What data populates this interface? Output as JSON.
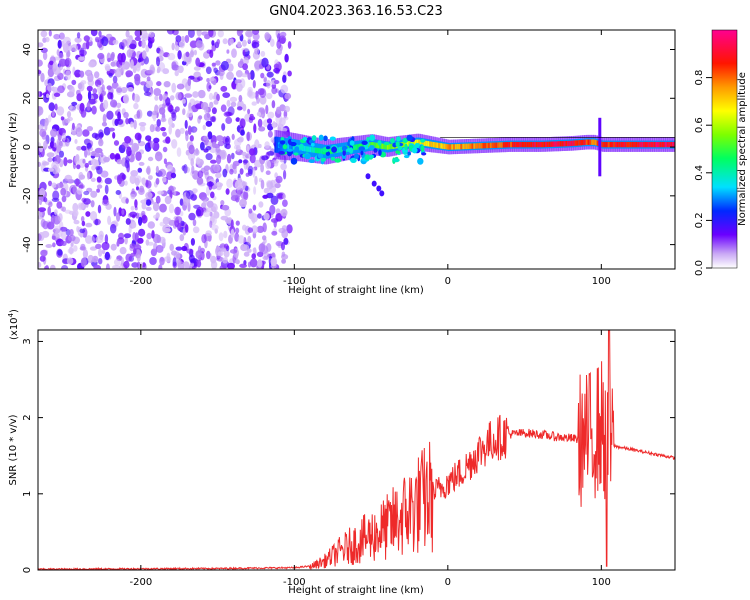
{
  "figure": {
    "title": "GN04.2023.363.16.53.C23"
  },
  "chart_data": [
    {
      "type": "heatmap",
      "name": "spectrogram",
      "xlabel": "Height of straight line (km)",
      "ylabel": "Frequency (Hz)",
      "xlim": [
        -267,
        148
      ],
      "ylim": [
        -50,
        48
      ],
      "xticks": [
        -200,
        -100,
        0,
        100
      ],
      "xtick_labels": [
        "-200",
        "-100",
        "0",
        "100"
      ],
      "yticks": [
        -40,
        -20,
        0,
        20,
        40
      ],
      "ytick_labels": [
        "-40",
        "-20",
        "0",
        "20",
        "40"
      ],
      "noise_region": {
        "x_range": [
          -267,
          -103
        ],
        "y_range": [
          -50,
          48
        ]
      },
      "signal_band": {
        "x": [
          -113,
          -100,
          -90,
          -80,
          -70,
          -60,
          -50,
          -40,
          -30,
          -20,
          -10,
          0,
          20,
          40,
          60,
          80,
          90,
          95,
          100,
          148
        ],
        "center_hz": [
          1,
          0,
          -1,
          -2,
          -1,
          0,
          1,
          0,
          1,
          2,
          1,
          0,
          0.5,
          1,
          1,
          1.5,
          2,
          2,
          1,
          1
        ],
        "amplitude": [
          0.25,
          0.35,
          0.4,
          0.45,
          0.4,
          0.45,
          0.5,
          0.55,
          0.6,
          0.65,
          0.7,
          0.75,
          0.8,
          0.85,
          0.9,
          0.9,
          0.85,
          0.8,
          0.85,
          0.95
        ]
      },
      "colorbar": {
        "label": "Normalized spectral amplitude",
        "ticks": [
          0.0,
          0.2,
          0.4,
          0.6,
          0.8
        ],
        "tick_labels": [
          "0.0",
          "0.2",
          "0.4",
          "0.6",
          "0.8"
        ],
        "range": [
          0,
          1
        ]
      }
    },
    {
      "type": "line",
      "name": "snr",
      "xlabel": "Height of straight line (km)",
      "ylabel": "SNR (10 * v/v)",
      "exponent_label": "(x10",
      "exponent_sup": "4",
      "exponent_close": ")",
      "xlim": [
        -267,
        148
      ],
      "ylim": [
        0,
        3.15
      ],
      "xticks": [
        -200,
        -100,
        0,
        100
      ],
      "xtick_labels": [
        "-200",
        "-100",
        "0",
        "100"
      ],
      "yticks": [
        0,
        1,
        2,
        3
      ],
      "ytick_labels": [
        "0",
        "1",
        "2",
        "3"
      ],
      "color": "#ee2a2a",
      "series": [
        {
          "x": [
            -267,
            -150,
            -100,
            -90,
            -80,
            -70,
            -60,
            -50,
            -40,
            -30,
            -20,
            -10,
            0,
            10,
            20,
            30,
            40,
            50,
            60,
            70,
            80,
            90,
            95,
            100,
            103,
            105,
            110,
            120,
            130,
            148
          ],
          "y": [
            0.0,
            0.01,
            0.02,
            0.04,
            0.12,
            0.25,
            0.35,
            0.45,
            0.55,
            0.7,
            0.85,
            1.0,
            1.15,
            1.3,
            1.55,
            1.72,
            1.78,
            1.8,
            1.78,
            1.75,
            1.73,
            1.7,
            1.8,
            1.9,
            1.7,
            1.65,
            1.62,
            1.58,
            1.54,
            1.47
          ]
        }
      ]
    }
  ]
}
